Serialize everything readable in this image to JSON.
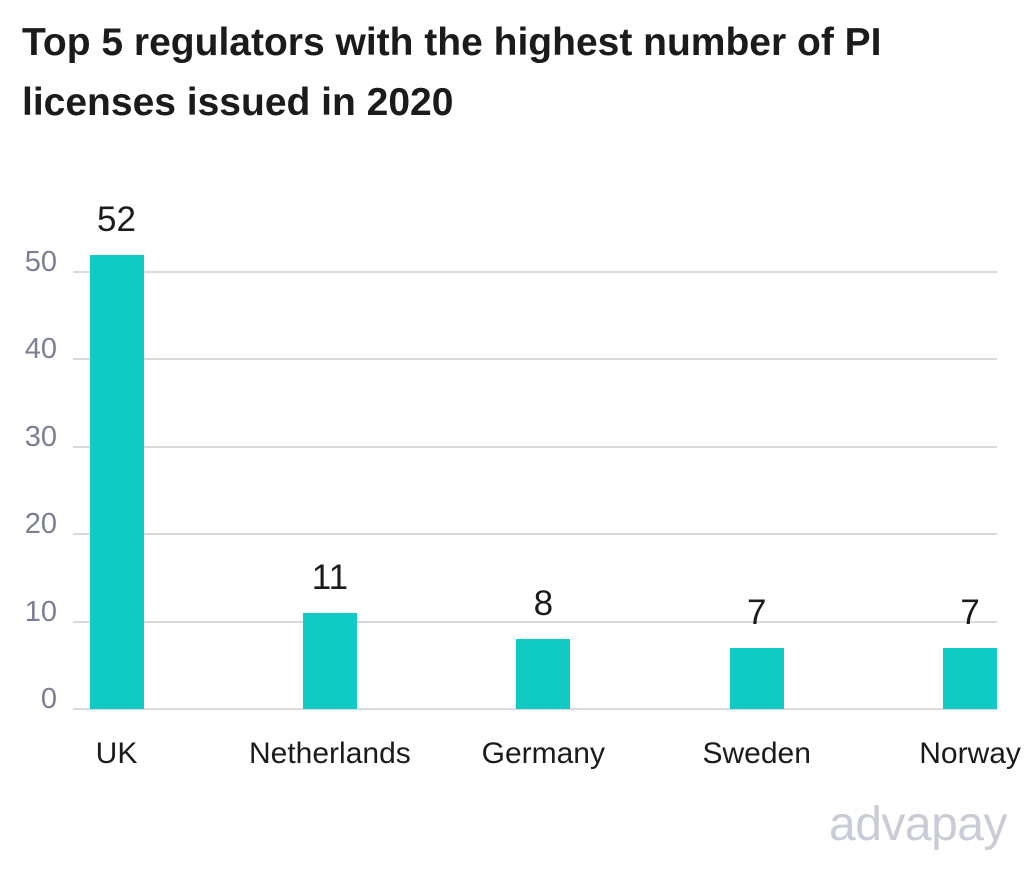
{
  "header": {
    "title": "Top 5 regulators with the highest number of PI licenses issued in 2020",
    "title_lines": [
      "Top 5 regulators with the highest number of PI",
      "licenses issued in 2020"
    ]
  },
  "chart_data": {
    "type": "bar",
    "title": "Top 5 regulators with the highest number of PI licenses issued in 2020",
    "categories": [
      "UK",
      "Netherlands",
      "Germany",
      "Sweden",
      "Norway"
    ],
    "values": [
      52,
      11,
      8,
      7,
      7
    ],
    "data_labels": [
      "52",
      "11",
      "8",
      "7",
      "7"
    ],
    "xlabel": "",
    "ylabel": "",
    "ylim": [
      0,
      50
    ],
    "yticks": [
      0,
      10,
      20,
      30,
      40,
      50
    ],
    "grid": true,
    "legend": false,
    "bar_color": "#0fcbc4"
  },
  "branding": {
    "logo_text": "advapay"
  },
  "colors": {
    "background": "#ffffff",
    "bar": "#0fcbc4",
    "title": "#1b1b1d",
    "tick_label": "#7b7f95",
    "gridline": "#d9dade",
    "logo": "#c9ccd6"
  }
}
